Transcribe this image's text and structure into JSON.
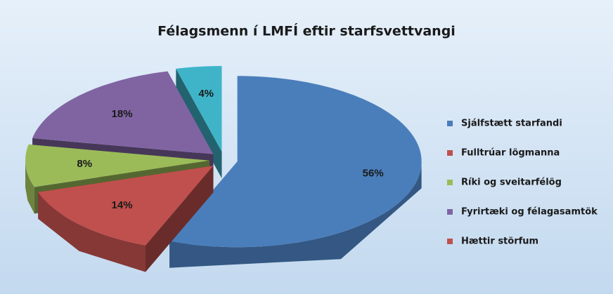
{
  "chart_data": {
    "type": "pie",
    "title": "Félagsmenn í LMFÍ eftir starfsvettvangi",
    "categories": [
      "Sjálfstætt starfandi",
      "Fulltrúar lögmanna",
      "Ríki og sveitarfélög",
      "Fyrirtæki og félagasamtök",
      "Hættir störfum"
    ],
    "values": [
      56,
      14,
      8,
      18,
      4
    ],
    "value_labels": [
      "56%",
      "14%",
      "8%",
      "18%",
      "4%"
    ],
    "colors": [
      "#4a7ebb",
      "#c0504d",
      "#9bbb59",
      "#8064a2",
      "#3fb4c9"
    ],
    "legend_colors": [
      "#4a7ebb",
      "#c0504d",
      "#9bbb59",
      "#8064a2",
      "#c0504d"
    ],
    "legend": "right"
  }
}
